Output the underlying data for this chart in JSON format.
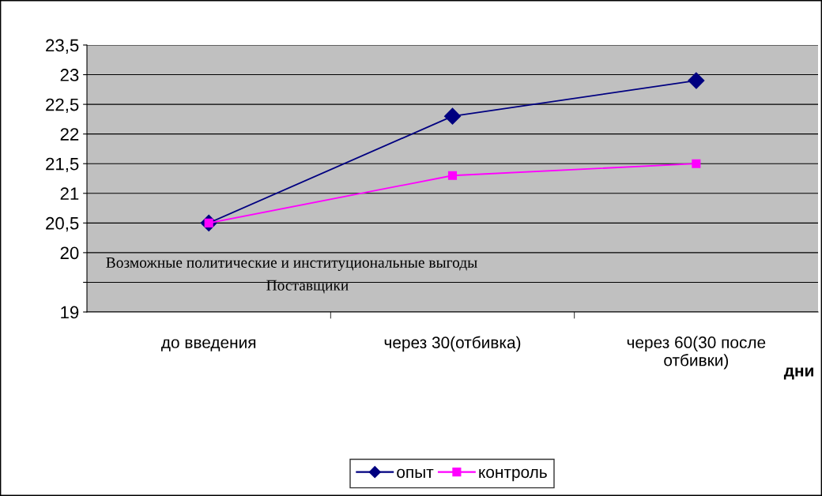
{
  "chart_data": {
    "type": "line",
    "xlabel": "дни",
    "categories": [
      "до введения",
      "через 30(отбивка)",
      "через 60(30 после отбивки)"
    ],
    "series": [
      {
        "name": "опыт",
        "color": "#000080",
        "marker": "diamond",
        "values": [
          20.5,
          22.3,
          22.9
        ]
      },
      {
        "name": "контроль",
        "color": "#ff00ff",
        "marker": "square",
        "values": [
          20.5,
          21.3,
          21.5
        ]
      }
    ],
    "ylim": [
      19,
      23.5
    ],
    "yticks": [
      19,
      {
        "value": 19.5,
        "label": null
      },
      20,
      {
        "value": 20.5,
        "label": "20,5"
      },
      21,
      {
        "value": 21.5,
        "label": "21,5"
      },
      22,
      {
        "value": 22.5,
        "label": "22,5"
      },
      23,
      {
        "value": 23.5,
        "label": "23,5"
      }
    ],
    "grid": "y",
    "legend": "bottom",
    "line_style": "solid",
    "annotations": [
      "Возможные политические и институциональные выгоды",
      "Поставщики"
    ]
  }
}
